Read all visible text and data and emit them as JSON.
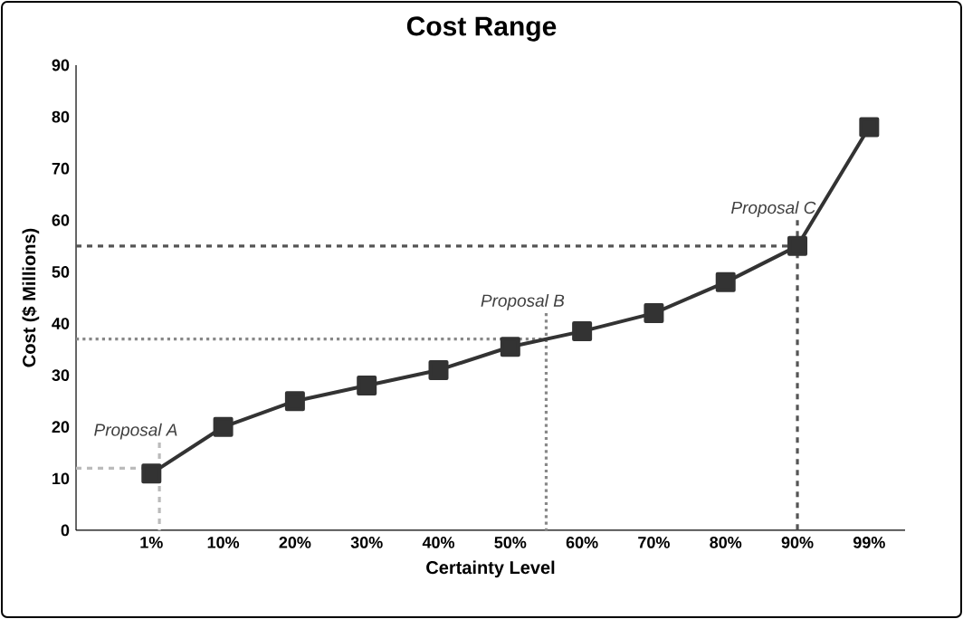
{
  "chart_data": {
    "type": "line",
    "title": "Cost Range",
    "xlabel": "Certainty Level",
    "ylabel": "Cost ($ Millions)",
    "categories": [
      "1%",
      "10%",
      "20%",
      "30%",
      "40%",
      "50%",
      "60%",
      "70%",
      "80%",
      "90%",
      "99%"
    ],
    "series": [
      {
        "color": "#333333",
        "values": [
          11,
          20,
          25,
          28,
          31,
          35.5,
          38.5,
          42,
          48,
          55,
          78
        ]
      }
    ],
    "marker": "square",
    "line_style": "solid",
    "ylim": [
      0,
      90
    ],
    "yticks": [
      0,
      10,
      20,
      30,
      40,
      50,
      60,
      70,
      80,
      90
    ],
    "ref_lines": [
      {
        "axis": "y",
        "value": 12,
        "label": "Proposal A",
        "color": "#bbbbbb",
        "line_style": "dashed"
      },
      {
        "axis": "y",
        "value": 37,
        "label": "Proposal B",
        "color": "#888888",
        "line_style": "dotted"
      },
      {
        "axis": "y",
        "value": 55,
        "label": "Proposal C",
        "color": "#555555",
        "line_style": "dashed"
      }
    ]
  }
}
